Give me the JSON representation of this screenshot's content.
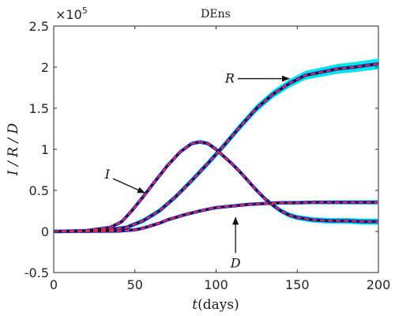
{
  "chart_data": {
    "type": "line",
    "title": "DEns",
    "xlabel_var": "t",
    "xlabel_unit": "(days)",
    "ylabel": "I / R / D",
    "exponent_label": "×10",
    "exponent_power": "5",
    "xlim": [
      0,
      200
    ],
    "ylim": [
      -0.5,
      2.5
    ],
    "x_ticks": [
      0,
      50,
      100,
      150,
      200
    ],
    "x_tick_labels": [
      "0",
      "50",
      "100",
      "150",
      "200"
    ],
    "y_ticks": [
      -0.5,
      0,
      0.5,
      1,
      1.5,
      2,
      2.5
    ],
    "y_tick_labels": [
      "-0.5",
      "0",
      "0.5",
      "1",
      "1.5",
      "2",
      "2.5"
    ],
    "grid": false,
    "colors": {
      "band": "#00e5e5",
      "data": "#1a1acc",
      "fit": "#111111",
      "ensemble": "#e8303a"
    },
    "series": [
      {
        "x": [
          0,
          20,
          35,
          42,
          48,
          55,
          62,
          70,
          78,
          85,
          90,
          95,
          100,
          105,
          110,
          115,
          120,
          125,
          130,
          135,
          140,
          145,
          150,
          160,
          170,
          180,
          190,
          200
        ],
        "y": [
          0,
          0.01,
          0.05,
          0.12,
          0.25,
          0.42,
          0.6,
          0.8,
          0.97,
          1.07,
          1.09,
          1.07,
          1.0,
          0.91,
          0.82,
          0.72,
          0.61,
          0.5,
          0.4,
          0.32,
          0.25,
          0.2,
          0.17,
          0.14,
          0.13,
          0.13,
          0.12,
          0.12
        ],
        "spread": 0.03
      },
      {
        "x": [
          0,
          30,
          45,
          55,
          65,
          75,
          85,
          95,
          105,
          115,
          125,
          135,
          145,
          155,
          165,
          175,
          185,
          200
        ],
        "y": [
          0,
          0.01,
          0.05,
          0.13,
          0.25,
          0.42,
          0.62,
          0.83,
          1.05,
          1.28,
          1.5,
          1.67,
          1.8,
          1.9,
          1.94,
          1.98,
          2.0,
          2.04
        ],
        "spread": 0.05
      },
      {
        "x": [
          0,
          40,
          50,
          55,
          60,
          65,
          70,
          80,
          90,
          100,
          110,
          120,
          130,
          140,
          150,
          160,
          180,
          200
        ],
        "y": [
          0,
          0.005,
          0.02,
          0.04,
          0.07,
          0.1,
          0.14,
          0.2,
          0.25,
          0.29,
          0.31,
          0.33,
          0.34,
          0.35,
          0.35,
          0.355,
          0.355,
          0.355
        ],
        "spread": 0.02
      }
    ],
    "annotations": [
      {
        "label": "I",
        "pointer_xy": [
          56,
          0.47
        ]
      },
      {
        "label": "R",
        "pointer_xy": [
          145,
          1.86
        ]
      },
      {
        "label": "D",
        "pointer_xy": [
          112,
          0.17
        ]
      }
    ]
  }
}
